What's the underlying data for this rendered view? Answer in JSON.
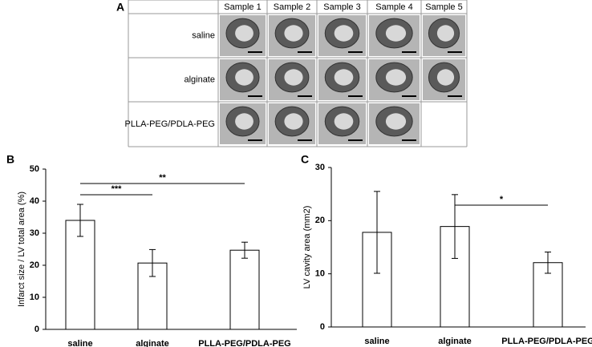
{
  "panel_a": {
    "letter": "A",
    "columns": [
      "Sample 1",
      "Sample 2",
      "Sample 3",
      "Sample 4",
      "Sample 5"
    ],
    "rows": [
      "saline",
      "alginate",
      "PLLA-PEG/PDLA-PEG"
    ]
  },
  "chart_data": [
    {
      "type": "bar",
      "letter": "B",
      "ylabel": "Infarct size / LV total area (%)",
      "categories": [
        "saline",
        "alginate",
        "PLLA-PEG/PDLA-PEG"
      ],
      "values": [
        34,
        20.7,
        24.7
      ],
      "errors": [
        5,
        4.2,
        2.5
      ],
      "color": "#ffffff",
      "ylim": [
        0,
        50
      ],
      "yticks": [
        0,
        10,
        20,
        30,
        40,
        50
      ],
      "annotations": [
        {
          "text": "***",
          "pair": [
            0,
            1
          ]
        },
        {
          "text": "**",
          "pair": [
            0,
            2
          ]
        }
      ]
    },
    {
      "type": "bar",
      "letter": "C",
      "ylabel": "LV cavity area (mm2)",
      "categories": [
        "saline",
        "alginate",
        "PLLA-PEG/PDLA-PEG"
      ],
      "values": [
        17.8,
        18.9,
        12.1
      ],
      "errors": [
        7.7,
        6,
        2
      ],
      "color": "#ffffff",
      "ylim": [
        0,
        30
      ],
      "yticks": [
        0,
        10,
        20,
        30
      ],
      "annotations": [
        {
          "text": "*",
          "pair": [
            1,
            2
          ]
        }
      ]
    }
  ]
}
